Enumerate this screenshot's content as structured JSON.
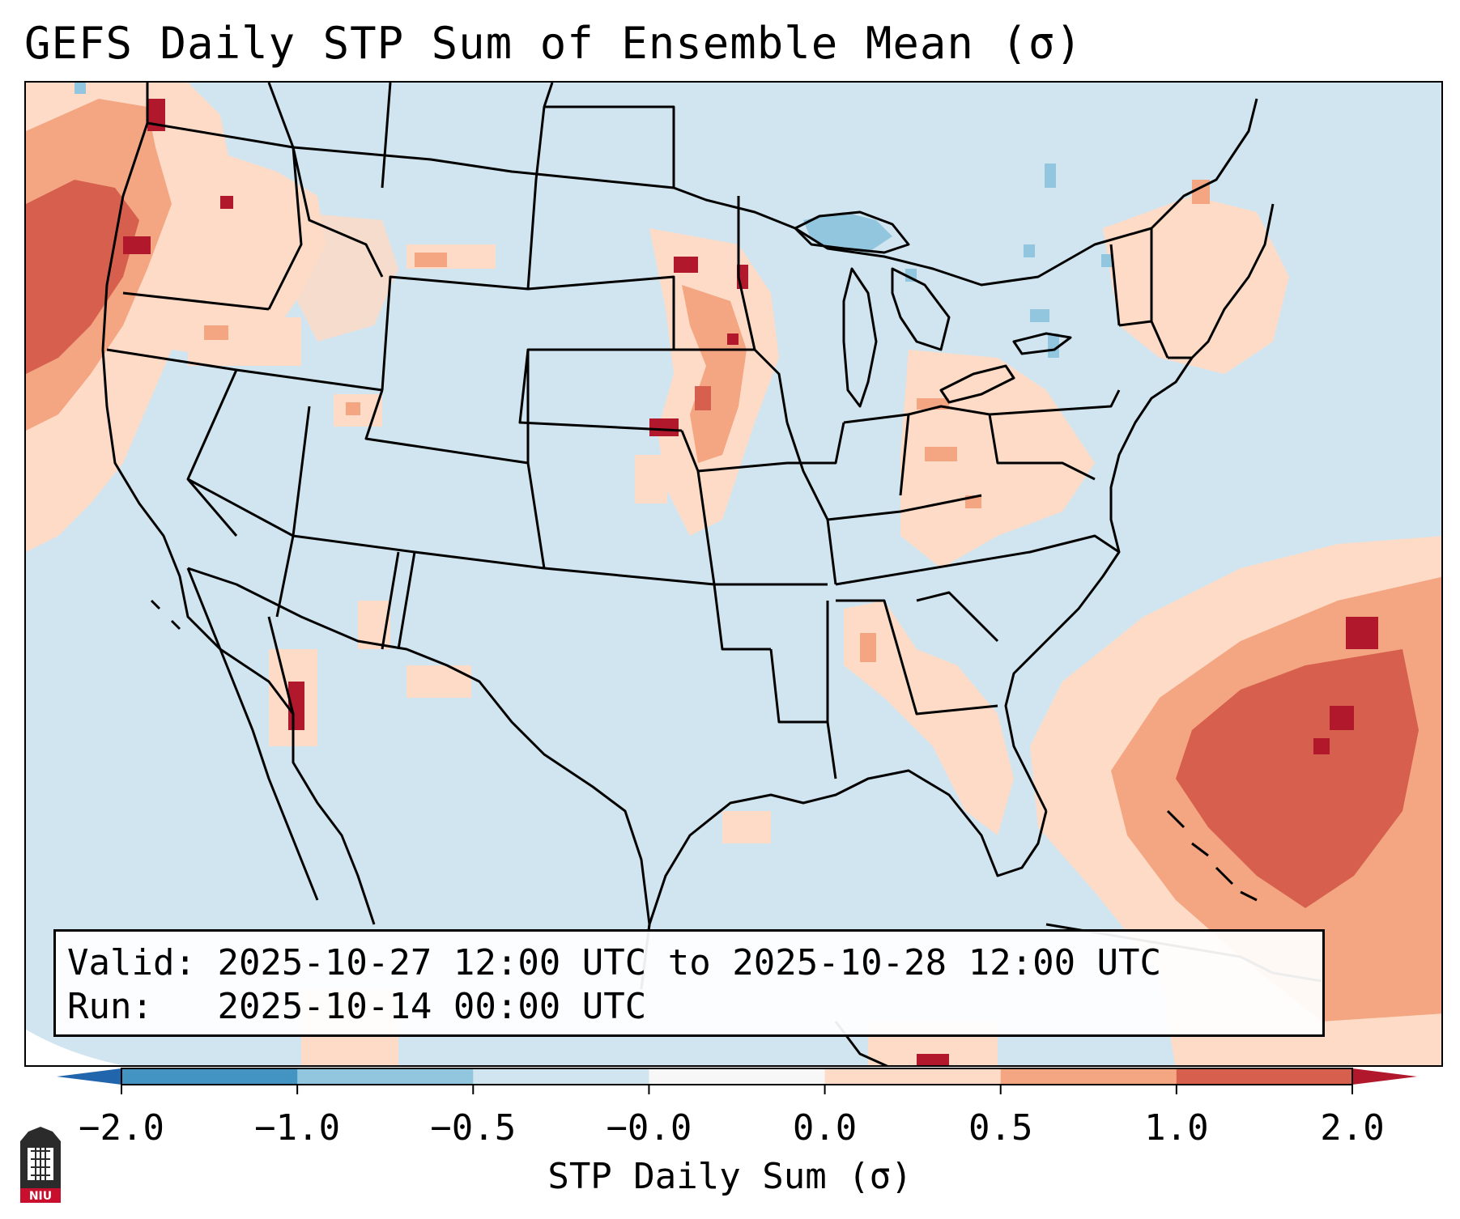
{
  "title": "GEFS Daily STP Sum of Ensemble Mean (σ)",
  "info": {
    "valid_label": "Valid:",
    "valid_value": "2025-10-27 12:00 UTC to 2025-10-28 12:00 UTC",
    "run_label": "Run:",
    "run_value": "2025-10-14 00:00 UTC"
  },
  "colorbar": {
    "label": "STP Daily Sum (σ)",
    "ticks": [
      "−2.0",
      "−1.0",
      "−0.5",
      "−0.0",
      "0.0",
      "0.5",
      "1.0",
      "2.0"
    ],
    "bins": [
      {
        "from": "-2.0",
        "to": "-1.0",
        "color": "#4393c3"
      },
      {
        "from": "-1.0",
        "to": "-0.5",
        "color": "#92c5de"
      },
      {
        "from": "-0.5",
        "to": "-0.0",
        "color": "#d1e5f0"
      },
      {
        "from": "-0.0",
        "to": "0.0",
        "color": "#f7f7f7"
      },
      {
        "from": "0.0",
        "to": "0.5",
        "color": "#fddbc7"
      },
      {
        "from": "0.5",
        "to": "1.0",
        "color": "#f4a582"
      },
      {
        "from": "1.0",
        "to": "2.0",
        "color": "#d6604d"
      }
    ],
    "under_color": "#2166ac",
    "over_color": "#b2182b",
    "background_color": "#d1e5f0"
  },
  "logo": {
    "name": "NIU logo",
    "text": "NIU"
  }
}
